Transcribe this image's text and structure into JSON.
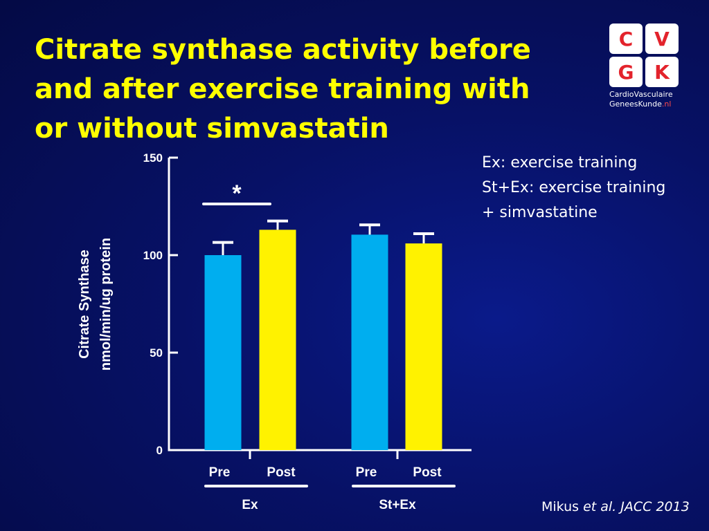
{
  "slide": {
    "title_lines": [
      "Citrate synthase activity before",
      "and after exercise training with",
      "or without simvastatin"
    ],
    "legend_lines": [
      "Ex: exercise training",
      "St+Ex: exercise training",
      "+ simvastatine"
    ],
    "citation": {
      "author": "Mikus",
      "etal": "et al.",
      "journal": "JACC 2013"
    },
    "logo": {
      "letters": [
        "C",
        "V",
        "G",
        "K"
      ],
      "line1": "CardioVasculaire",
      "line2": "GeneesKunde",
      "line2_suffix": ".nl"
    }
  },
  "colors": {
    "background": "#071166",
    "title": "#ffff00",
    "pre_bar": "#00aeef",
    "post_bar": "#fff200",
    "axis": "#ffffff",
    "logo_letters": "#e3232c"
  },
  "chart_data": {
    "type": "bar",
    "ylabel_lines": [
      "Citrate Synthase",
      "nmol/min/ug protein"
    ],
    "ylim": [
      0,
      150
    ],
    "yticks": [
      0,
      50,
      100,
      150
    ],
    "groups": [
      {
        "name": "Ex",
        "bars": [
          {
            "label": "Pre",
            "value": 100,
            "error": 6.5,
            "color_key": "pre_bar"
          },
          {
            "label": "Post",
            "value": 113,
            "error": 4.5,
            "color_key": "post_bar"
          }
        ]
      },
      {
        "name": "St+Ex",
        "bars": [
          {
            "label": "Pre",
            "value": 110.5,
            "error": 5,
            "color_key": "pre_bar"
          },
          {
            "label": "Post",
            "value": 106,
            "error": 5,
            "color_key": "post_bar"
          }
        ]
      }
    ],
    "annotations": [
      {
        "text": "*",
        "group": "Ex"
      }
    ]
  }
}
